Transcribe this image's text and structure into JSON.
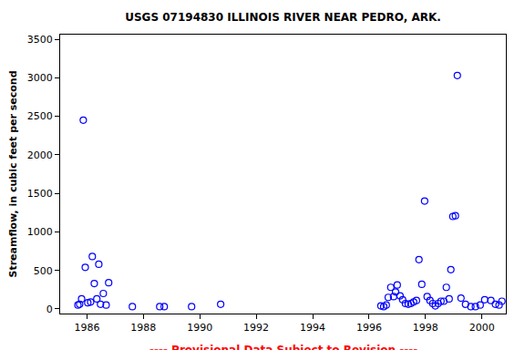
{
  "chart_data": {
    "type": "scatter",
    "title": "USGS 07194830 ILLINOIS RIVER NEAR PEDRO, ARK.",
    "y_label": "Streamflow, in cubic feet per second",
    "x": [
      1985.68,
      1985.74,
      1985.81,
      1985.87,
      1985.94,
      1986.03,
      1986.13,
      1986.19,
      1986.26,
      1986.35,
      1986.42,
      1986.48,
      1986.58,
      1986.68,
      1986.77,
      1987.61,
      1988.58,
      1988.74,
      1989.71,
      1990.74,
      1996.42,
      1996.52,
      1996.61,
      1996.68,
      1996.77,
      1996.87,
      1996.94,
      1997.0,
      1997.1,
      1997.19,
      1997.29,
      1997.39,
      1997.48,
      1997.58,
      1997.68,
      1997.77,
      1997.87,
      1997.97,
      1998.06,
      1998.16,
      1998.26,
      1998.35,
      1998.45,
      1998.55,
      1998.65,
      1998.74,
      1998.84,
      1998.9,
      1998.97,
      1999.06,
      1999.13,
      1999.26,
      1999.42,
      1999.61,
      1999.77,
      1999.94,
      2000.1,
      2000.32,
      2000.48,
      2000.61,
      2000.71
    ],
    "values": [
      50,
      60,
      130,
      2450,
      540,
      80,
      90,
      680,
      330,
      130,
      580,
      60,
      200,
      50,
      340,
      30,
      30,
      30,
      30,
      60,
      40,
      30,
      50,
      150,
      280,
      160,
      220,
      310,
      170,
      120,
      70,
      60,
      70,
      90,
      110,
      640,
      320,
      1400,
      160,
      110,
      70,
      40,
      70,
      100,
      100,
      280,
      130,
      510,
      1200,
      1210,
      3030,
      140,
      60,
      30,
      30,
      50,
      120,
      110,
      60,
      50,
      100
    ],
    "color": "#0000ff",
    "marker": "circle-open",
    "xlim": [
      1985.05,
      2000.85
    ],
    "xticks": [
      1986,
      1988,
      1990,
      1992,
      1994,
      1996,
      1998,
      2000
    ],
    "ylim": [
      -60,
      3560
    ],
    "yticks": [
      0,
      500,
      1000,
      1500,
      2000,
      2500,
      3000,
      3500
    ],
    "grid": false,
    "annotations": [
      {
        "text": "---- Provisional Data Subject to Revision ----",
        "color": "#ff0000"
      }
    ]
  }
}
